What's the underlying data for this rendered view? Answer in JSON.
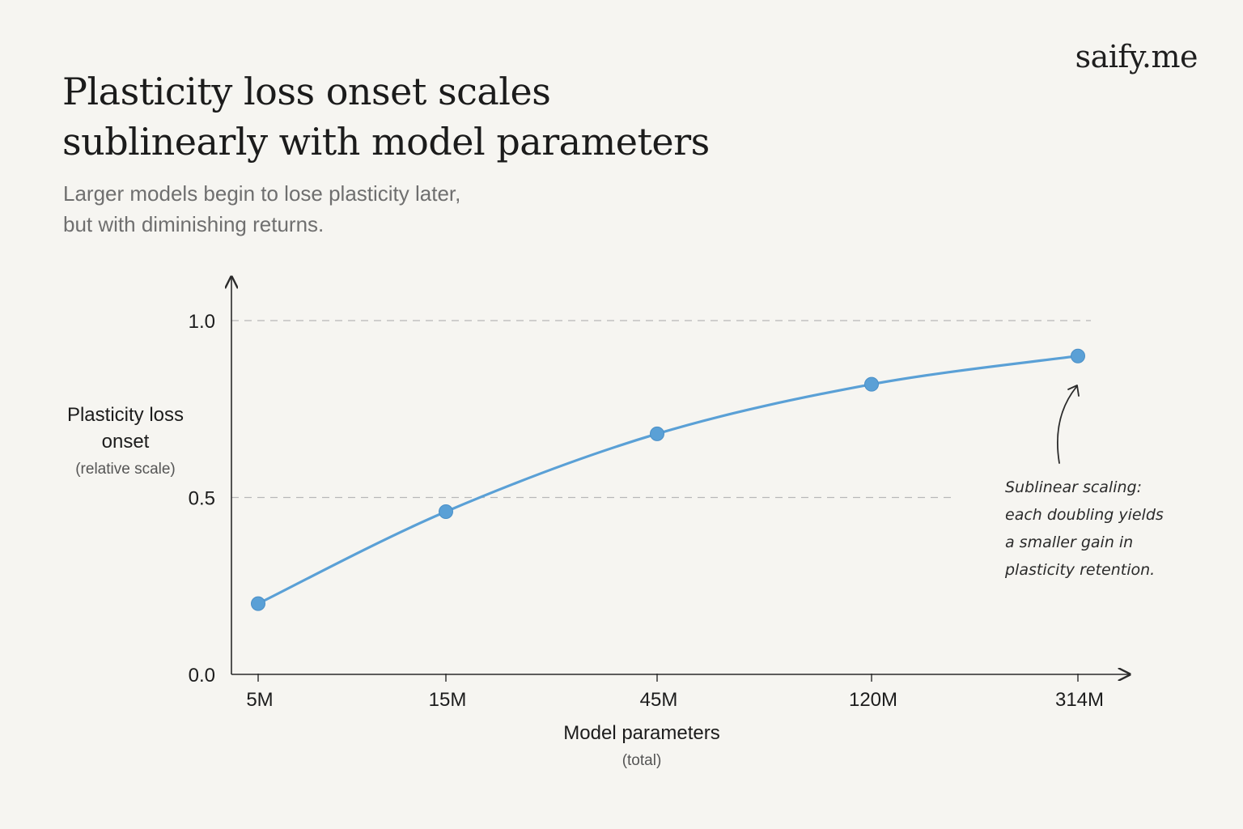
{
  "brand": "saify.me",
  "title_lines": [
    "Plasticity loss onset scales",
    "sublinearly with model parameters"
  ],
  "subtitle_lines": [
    "Larger models begin to lose plasticity later,",
    "but with diminishing returns."
  ],
  "colors": {
    "line": "#5aa0d6",
    "grid": "#b8b8b8",
    "axis": "#2a2a2a",
    "text": "#1c1c1c",
    "muted": "#555555"
  },
  "chart_data": {
    "type": "line",
    "categories": [
      "5M",
      "15M",
      "45M",
      "120M",
      "314M"
    ],
    "series": [
      {
        "values": [
          0.2,
          0.46,
          0.68,
          0.82,
          0.9
        ]
      }
    ],
    "ylim": [
      0,
      1.0
    ],
    "yticks": [
      "0.0",
      "0.5",
      "1.0"
    ],
    "gridlines_at": [
      0.5,
      1.0
    ],
    "ylabel_lines": [
      "Plasticity loss",
      "onset"
    ],
    "ylabel_sub": "(relative scale)",
    "xlabel": "Model parameters",
    "xlabel_sub": "(total)",
    "annotation_lines": [
      "Sublinear scaling:",
      "each doubling yields",
      "a smaller gain in",
      "plasticity retention."
    ]
  }
}
